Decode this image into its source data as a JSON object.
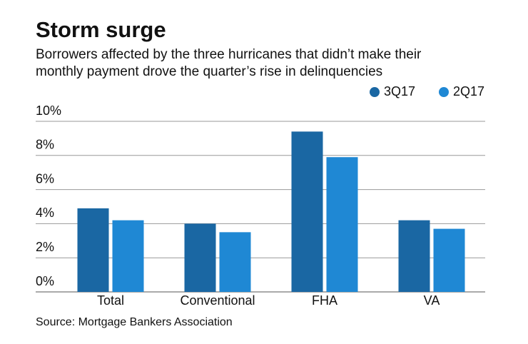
{
  "chart_data": {
    "type": "bar",
    "title": "Storm surge",
    "subtitle": [
      "Borrowers affected by the three hurricanes that didn’t make their",
      "monthly payment drove the quarter’s rise in delinquencies"
    ],
    "source": "Source: Mortgage Bankers Association",
    "categories": [
      "Total",
      "Conventional",
      "FHA",
      "VA"
    ],
    "series": [
      {
        "name": "3Q17",
        "color": "#1a67a3",
        "values": [
          4.9,
          4.0,
          9.4,
          4.2
        ]
      },
      {
        "name": "2Q17",
        "color": "#1f88d4",
        "values": [
          4.2,
          3.5,
          7.9,
          3.7
        ]
      }
    ],
    "ylim": [
      0,
      10
    ],
    "yticks": [
      {
        "value": 0,
        "label": "0%"
      },
      {
        "value": 2,
        "label": "2%"
      },
      {
        "value": 4,
        "label": "4%"
      },
      {
        "value": 6,
        "label": "6%"
      },
      {
        "value": 8,
        "label": "8%"
      },
      {
        "value": 10,
        "label": "10%"
      }
    ],
    "grid": true,
    "legend": "top-right"
  }
}
